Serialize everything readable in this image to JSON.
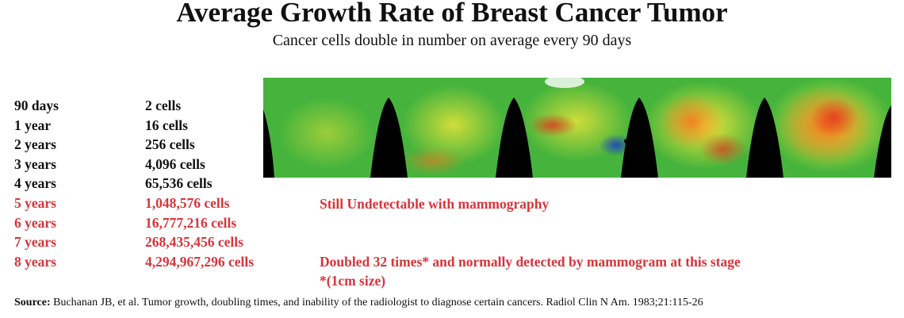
{
  "title": "Average Growth Rate of Breast Cancer Tumor",
  "subtitle": "Cancer cells double in number on average every 90 days",
  "table": {
    "rows": [
      [
        "90 days",
        "2 cells"
      ],
      [
        "1 year",
        "16 cells"
      ],
      [
        "2 years",
        "256 cells"
      ],
      [
        "3 years",
        "4,096 cells"
      ],
      [
        "4 years",
        "65,536 cells"
      ],
      [
        "5 years",
        "1,048,576 cells"
      ],
      [
        "6 years",
        "16,777,216 cells"
      ],
      [
        "7 years",
        "268,435,456 cells"
      ],
      [
        "8 years",
        "4,294,967,296 cells"
      ]
    ]
  },
  "notes": [
    "Still Undetectable with mammography",
    "Doubled 32 times* and normally detected by mammogram at this stage",
    "*(1cm size)"
  ],
  "source": {
    "label": "Source:",
    "text": "Buchanan JB, et al. Tumor growth, doubling times, and inability of the radiologist to diagnose certain cancers. Radiol Clin N Am. 1983;21:115-26"
  }
}
